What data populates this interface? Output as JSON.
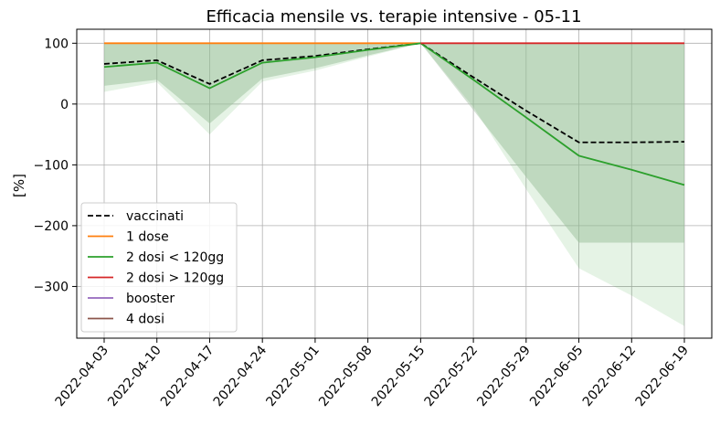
{
  "chart_data": {
    "type": "line",
    "title": "Efficacia mensile vs. terapie intensive - 05-11",
    "xlabel": "",
    "ylabel": "[%]",
    "x": [
      "2022-04-03",
      "2022-04-10",
      "2022-04-17",
      "2022-04-24",
      "2022-05-01",
      "2022-05-08",
      "2022-05-15",
      "2022-05-22",
      "2022-05-29",
      "2022-06-05",
      "2022-06-12",
      "2022-06-19"
    ],
    "yticks": [
      100,
      0,
      -100,
      -200,
      -300
    ],
    "ytick_labels": [
      "100",
      "0",
      "−100",
      "−200",
      "−300"
    ],
    "ylim": [
      -385,
      123
    ],
    "grid": true,
    "legend_position": "lower-left",
    "series": [
      {
        "name": "vaccinati",
        "color": "#000000",
        "dash": true,
        "values": [
          66,
          72,
          33,
          72,
          79,
          90,
          100,
          44,
          -11,
          -63,
          -63,
          -62
        ]
      },
      {
        "name": "1 dose",
        "color": "#ff7f0e",
        "dash": false,
        "values": [
          100,
          100,
          100,
          100,
          100,
          100,
          100,
          null,
          null,
          null,
          null,
          null
        ]
      },
      {
        "name": "2 dosi < 120gg",
        "color": "#2ca02c",
        "dash": false,
        "values": [
          61,
          68,
          26,
          68,
          77,
          89,
          100,
          40,
          -22,
          -85,
          -108,
          -133
        ]
      },
      {
        "name": "2 dosi > 120gg",
        "color": "#d62728",
        "dash": false,
        "values": [
          null,
          null,
          null,
          null,
          null,
          null,
          100,
          100,
          100,
          100,
          100,
          100
        ]
      },
      {
        "name": "booster",
        "color": "#9467bd",
        "dash": false,
        "values": [
          null,
          null,
          null,
          null,
          null,
          null,
          null,
          null,
          null,
          null,
          null,
          null
        ]
      },
      {
        "name": "4 dosi",
        "color": "#8c564b",
        "dash": false,
        "values": [
          null,
          null,
          null,
          null,
          null,
          null,
          null,
          null,
          null,
          null,
          null,
          null
        ]
      }
    ],
    "bands": [
      {
        "series": "vaccinati",
        "color": "#a9c6a9",
        "opacity": 0.5,
        "upper": [
          100,
          100,
          100,
          100,
          100,
          100,
          100,
          100,
          100,
          100,
          100,
          100
        ],
        "lower": [
          30,
          40,
          -32,
          42,
          59,
          80,
          100,
          -10,
          -120,
          -228,
          -228,
          -228
        ]
      },
      {
        "series": "2 dosi < 120gg",
        "color": "#2ca02c",
        "opacity": 0.12,
        "upper": [
          100,
          100,
          100,
          100,
          100,
          100,
          100,
          100,
          100,
          100,
          100,
          100
        ],
        "lower": [
          20,
          36,
          -50,
          37,
          55,
          78,
          100,
          -5,
          -140,
          -270,
          -315,
          -365
        ]
      }
    ]
  }
}
